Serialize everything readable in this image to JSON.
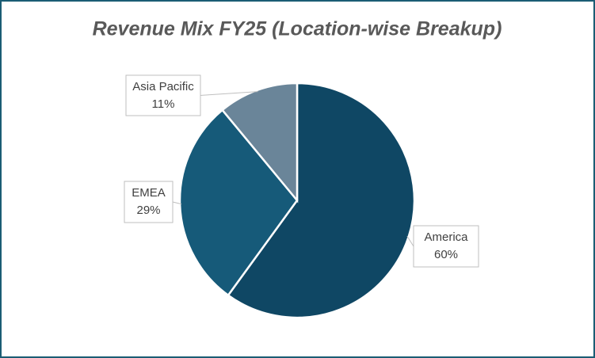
{
  "chart_data": {
    "type": "pie",
    "title": "Revenue Mix FY25 (Location-wise Breakup)",
    "categories": [
      "America",
      "EMEA",
      "Asia Pacific"
    ],
    "values": [
      60,
      29,
      11
    ],
    "value_labels": [
      "60%",
      "29%",
      "11%"
    ],
    "colors": [
      "#0f4764",
      "#165a79",
      "#6a8599"
    ]
  }
}
